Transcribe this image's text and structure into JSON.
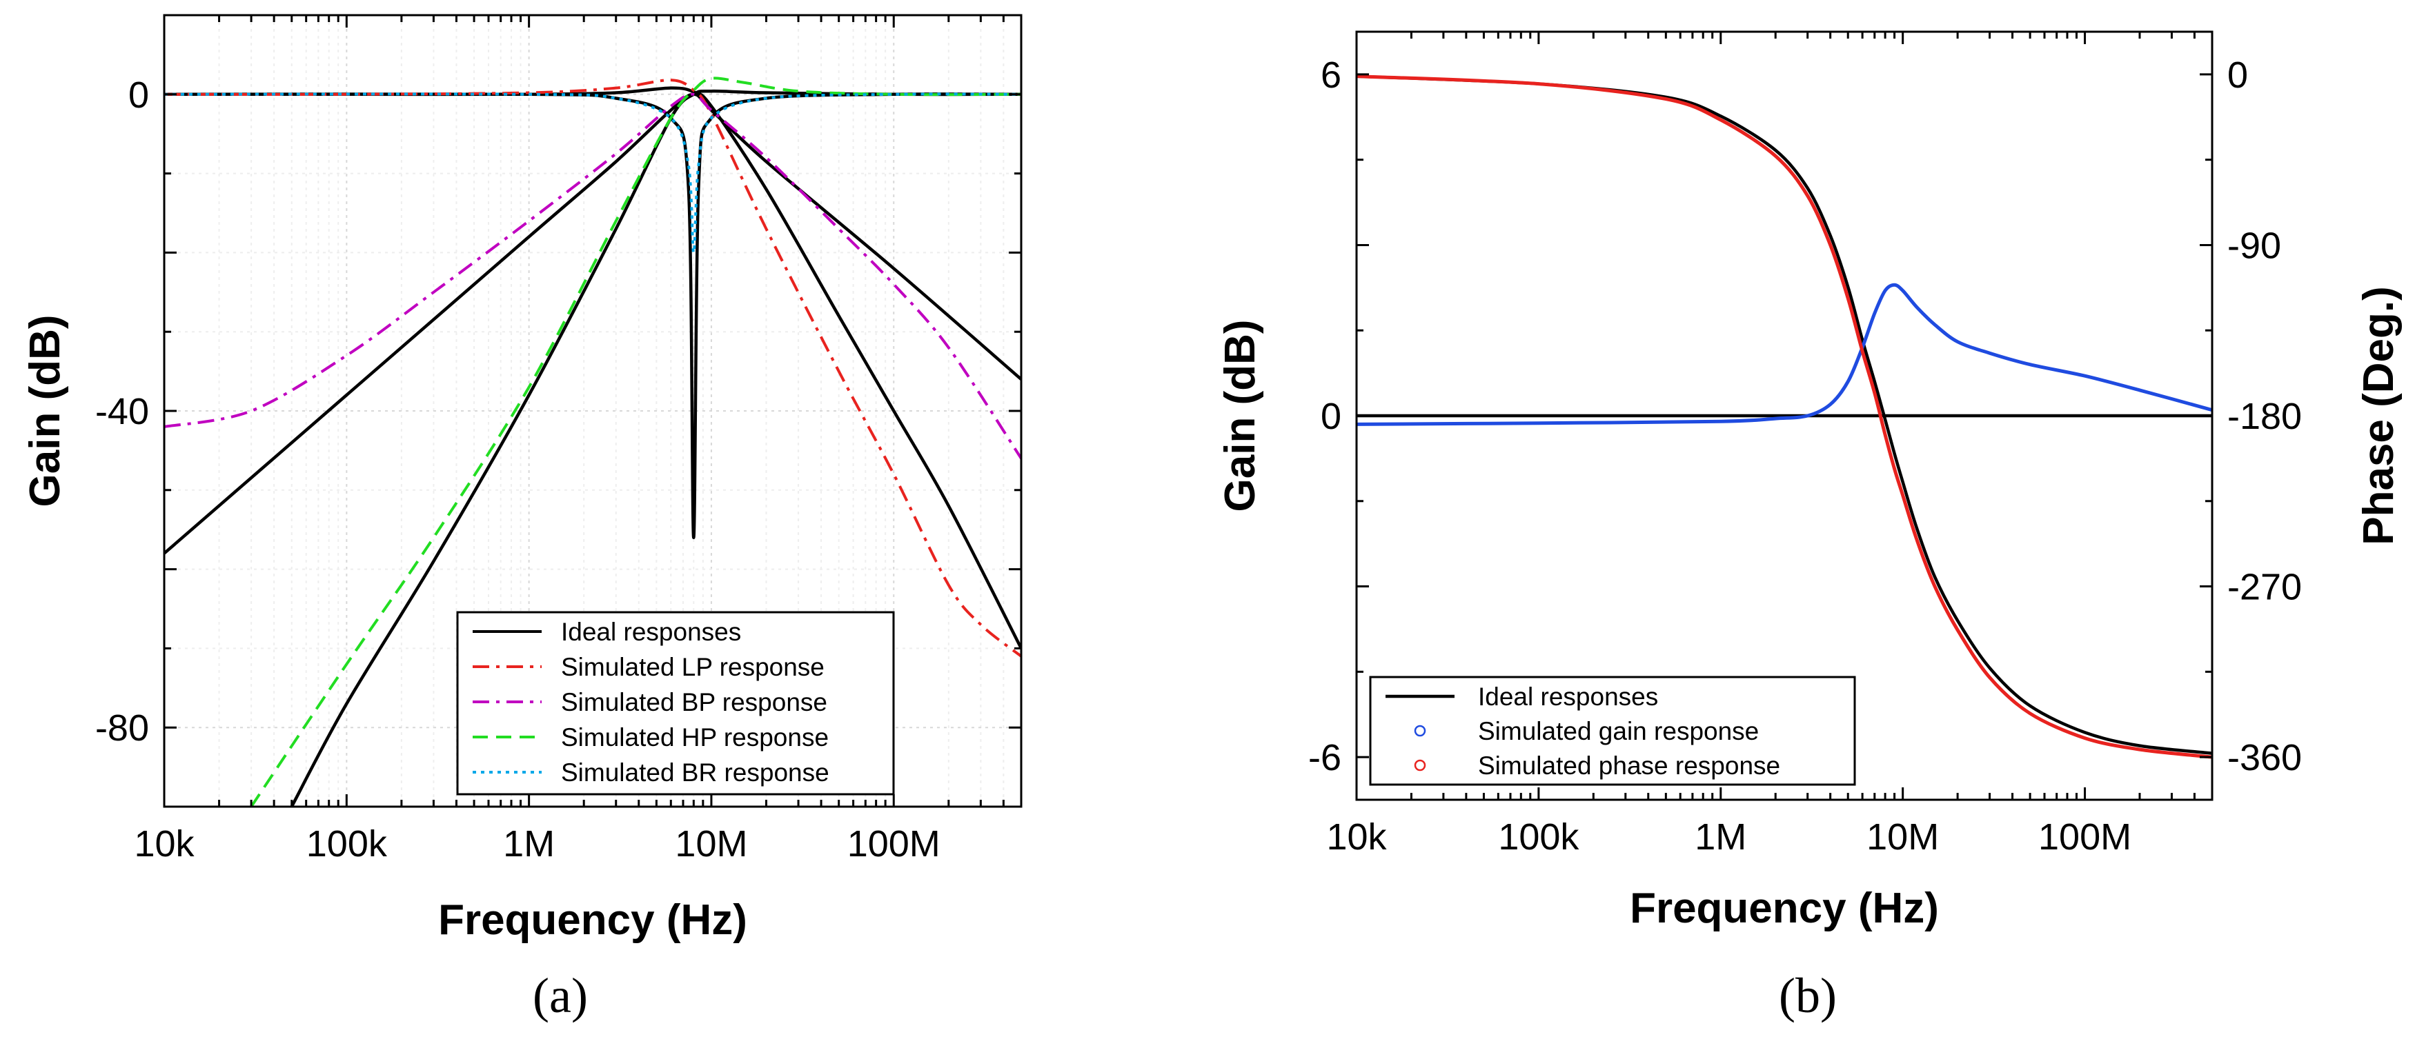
{
  "chart_data": [
    {
      "type": "line",
      "panel": "a",
      "caption": "(a)",
      "xlabel": "Frequency (Hz)",
      "ylabel": "Gain (dB)",
      "x_scale": "log",
      "xlim": [
        10000,
        500000000
      ],
      "ylim": [
        -90,
        10
      ],
      "x_ticks": [
        10000,
        100000,
        1000000,
        10000000,
        100000000
      ],
      "x_tick_labels": [
        "10k",
        "100k",
        "1M",
        "10M",
        "100M"
      ],
      "y_ticks": [
        0,
        -40,
        -80
      ],
      "y_tick_labels": [
        "0",
        "-40",
        "-80"
      ],
      "grid": true,
      "legend_position": "bottom-right",
      "legend": [
        "Ideal responses",
        "Simulated LP response",
        "Simulated BP response",
        "Simulated HP response",
        "Simulated BR response"
      ],
      "series": [
        {
          "name": "Ideal responses",
          "role": "ideal LP",
          "color": "#000000",
          "dash": "solid",
          "x": [
            10000,
            100000,
            1000000,
            3000000,
            6000000,
            8000000,
            10000000,
            20000000,
            50000000,
            100000000,
            200000000,
            500000000
          ],
          "y": [
            0,
            0,
            0,
            0.2,
            0.8,
            0.3,
            -1.5,
            -12,
            -28,
            -40,
            -52,
            -70
          ]
        },
        {
          "name": "Ideal responses",
          "role": "ideal BP",
          "color": "#000000",
          "dash": "solid",
          "x": [
            10000,
            100000,
            1000000,
            3000000,
            6000000,
            8000000,
            10000000,
            20000000,
            100000000,
            500000000
          ],
          "y": [
            -58,
            -38,
            -18,
            -8.5,
            -2,
            0,
            -2,
            -8.5,
            -22,
            -36
          ]
        },
        {
          "name": "Ideal responses",
          "role": "ideal HP",
          "color": "#000000",
          "dash": "solid",
          "x": [
            50000,
            100000,
            300000,
            1000000,
            3000000,
            6000000,
            8000000,
            10000000,
            20000000,
            100000000,
            500000000
          ],
          "y": [
            -90,
            -77,
            -59,
            -38,
            -17,
            -3,
            0,
            0.4,
            0.2,
            0,
            0
          ]
        },
        {
          "name": "Ideal responses",
          "role": "ideal BR",
          "color": "#000000",
          "dash": "solid",
          "x": [
            10000,
            1000000,
            3000000,
            6000000,
            7500000,
            8000000,
            8500000,
            10000000,
            20000000,
            100000000,
            500000000
          ],
          "y": [
            0,
            0,
            -0.5,
            -3,
            -12,
            -56,
            -12,
            -3,
            -0.5,
            0,
            0
          ]
        },
        {
          "name": "Simulated LP response",
          "color": "#e8231f",
          "dash": "dashdot",
          "x": [
            10000,
            100000,
            1000000,
            3000000,
            6000000,
            8000000,
            10000000,
            20000000,
            50000000,
            100000000,
            200000000,
            300000000,
            500000000
          ],
          "y": [
            0,
            0,
            0.2,
            0.8,
            1.8,
            0.5,
            -2.5,
            -17,
            -35,
            -48,
            -62,
            -67,
            -71
          ]
        },
        {
          "name": "Simulated BP response",
          "color": "#c000c0",
          "dash": "dashdot",
          "x": [
            10000,
            30000,
            100000,
            300000,
            1000000,
            3000000,
            6000000,
            8000000,
            10000000,
            20000000,
            50000000,
            100000000,
            200000000,
            500000000
          ],
          "y": [
            -42,
            -40,
            -33,
            -25,
            -16,
            -7.5,
            -1.5,
            0,
            -2,
            -8,
            -17,
            -24,
            -32,
            -46
          ]
        },
        {
          "name": "Simulated HP response",
          "color": "#22dd22",
          "dash": "dashed",
          "x": [
            30000,
            100000,
            300000,
            1000000,
            3000000,
            6000000,
            8000000,
            10000000,
            15000000,
            30000000,
            100000000,
            500000000
          ],
          "y": [
            -90,
            -72,
            -56,
            -37,
            -16,
            -3,
            0.5,
            2,
            1.5,
            0.4,
            0,
            0
          ]
        },
        {
          "name": "Simulated BR response",
          "color": "#00a8e8",
          "dash": "dotted",
          "x": [
            10000,
            1000000,
            3000000,
            6000000,
            7500000,
            8000000,
            8500000,
            10000000,
            20000000,
            100000000,
            500000000
          ],
          "y": [
            0,
            0,
            -0.5,
            -3,
            -9,
            -20,
            -9,
            -3,
            -0.5,
            0,
            0
          ]
        }
      ]
    },
    {
      "type": "line",
      "panel": "b",
      "caption": "(b)",
      "xlabel": "Frequency (Hz)",
      "ylabel": "Gain (dB)",
      "y2label": "Phase (Deg.)",
      "x_scale": "log",
      "xlim": [
        10000,
        500000000
      ],
      "ylim": [
        -6.75,
        6.75
      ],
      "y2lim": [
        -382.5,
        22.5
      ],
      "x_ticks": [
        10000,
        100000,
        1000000,
        10000000,
        100000000
      ],
      "x_tick_labels": [
        "10k",
        "100k",
        "1M",
        "10M",
        "100M"
      ],
      "y_ticks": [
        6,
        0,
        -6
      ],
      "y_tick_labels": [
        "6",
        "0",
        "-6"
      ],
      "y2_ticks": [
        0,
        -90,
        -180,
        -270,
        -360
      ],
      "y2_tick_labels": [
        "0",
        "-90",
        "-180",
        "-270",
        "-360"
      ],
      "grid": false,
      "legend_position": "bottom-left",
      "legend": [
        "Ideal responses",
        "Simulated gain response",
        "Simulated phase response"
      ],
      "series": [
        {
          "name": "Ideal responses",
          "role": "ideal gain",
          "axis": "left",
          "color": "#000000",
          "dash": "solid",
          "x": [
            10000,
            500000000
          ],
          "y": [
            0,
            0
          ]
        },
        {
          "name": "Ideal responses",
          "role": "ideal phase",
          "axis": "right",
          "color": "#000000",
          "dash": "solid",
          "x": [
            10000,
            100000,
            500000,
            1000000,
            2000000,
            3000000,
            4000000,
            5000000,
            6000000,
            7000000,
            8000000,
            9000000,
            10000000,
            12000000,
            15000000,
            20000000,
            30000000,
            50000000,
            100000000,
            200000000,
            500000000
          ],
          "y": [
            -1,
            -5,
            -12,
            -22,
            -40,
            -60,
            -85,
            -112,
            -140,
            -162,
            -182,
            -200,
            -215,
            -240,
            -265,
            -288,
            -313,
            -333,
            -347,
            -354,
            -358
          ]
        },
        {
          "name": "Simulated gain response",
          "axis": "left",
          "color": "#1f4be0",
          "dash": "solid",
          "x": [
            10000,
            100000,
            1000000,
            2000000,
            3000000,
            4000000,
            5000000,
            6000000,
            7000000,
            8000000,
            9000000,
            10000000,
            12000000,
            15000000,
            20000000,
            30000000,
            50000000,
            100000000,
            200000000,
            500000000
          ],
          "y": [
            -0.15,
            -0.13,
            -0.1,
            -0.05,
            0,
            0.2,
            0.6,
            1.2,
            1.8,
            2.2,
            2.3,
            2.2,
            1.9,
            1.6,
            1.3,
            1.1,
            0.9,
            0.7,
            0.45,
            0.1
          ]
        },
        {
          "name": "Simulated phase response",
          "axis": "right",
          "color": "#e8231f",
          "dash": "solid",
          "x": [
            10000,
            100000,
            500000,
            1000000,
            2000000,
            3000000,
            4000000,
            5000000,
            6000000,
            7000000,
            8000000,
            9000000,
            10000000,
            12000000,
            15000000,
            20000000,
            30000000,
            50000000,
            100000000,
            200000000,
            500000000
          ],
          "y": [
            -1,
            -5,
            -13,
            -24,
            -43,
            -64,
            -90,
            -118,
            -146,
            -168,
            -190,
            -208,
            -222,
            -246,
            -270,
            -293,
            -318,
            -337,
            -350,
            -356,
            -360
          ]
        }
      ]
    }
  ]
}
